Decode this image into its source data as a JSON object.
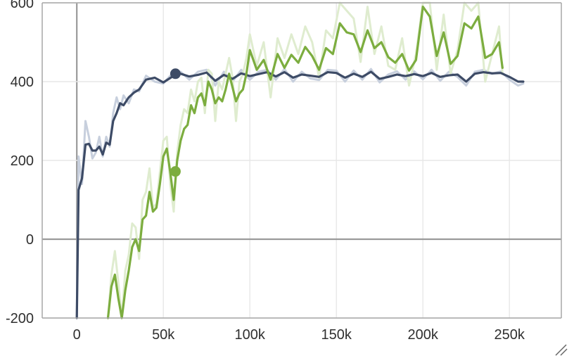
{
  "chart_data": {
    "type": "line",
    "title": "",
    "xlabel": "",
    "ylabel": "",
    "xlim": [
      -20000,
      280000
    ],
    "ylim": [
      -200,
      600
    ],
    "grid": true,
    "x_ticks": [
      {
        "value": 0,
        "label": "0"
      },
      {
        "value": 50000,
        "label": "50k"
      },
      {
        "value": 100000,
        "label": "100k"
      },
      {
        "value": 150000,
        "label": "150k"
      },
      {
        "value": 200000,
        "label": "200k"
      },
      {
        "value": 250000,
        "label": "250k"
      }
    ],
    "y_ticks": [
      {
        "value": -200,
        "label": "-200"
      },
      {
        "value": 0,
        "label": "0"
      },
      {
        "value": 200,
        "label": "200"
      },
      {
        "value": 400,
        "label": "400"
      },
      {
        "value": 600,
        "label": "600"
      }
    ],
    "colors": {
      "dark_series": "#3d4b66",
      "dark_series_raw": "#c7cfdd",
      "green_series": "#7cad3f",
      "green_series_raw": "#dfeccf",
      "axis": "#a7a7a7",
      "grid": "#e7e7e7",
      "zero_line": "#9a9a9a"
    },
    "series": [
      {
        "color_key": "dark_series",
        "raw_color_key": "dark_series_raw",
        "x": [
          0,
          1000,
          3000,
          5000,
          7000,
          9000,
          11000,
          13000,
          15000,
          17000,
          19000,
          21000,
          23000,
          25000,
          27000,
          30000,
          33000,
          36000,
          40000,
          45000,
          50000,
          55000,
          60000,
          65000,
          70000,
          75000,
          80000,
          85000,
          90000,
          95000,
          100000,
          105000,
          110000,
          115000,
          120000,
          125000,
          130000,
          135000,
          140000,
          145000,
          150000,
          155000,
          160000,
          165000,
          170000,
          175000,
          180000,
          185000,
          190000,
          195000,
          200000,
          205000,
          210000,
          215000,
          220000,
          225000,
          230000,
          235000,
          240000,
          245000,
          250000,
          255000,
          258000
        ],
        "values": [
          -200,
          125,
          155,
          240,
          242,
          225,
          225,
          235,
          215,
          245,
          240,
          300,
          320,
          345,
          340,
          360,
          372,
          380,
          405,
          410,
          398,
          412,
          420,
          413,
          417,
          423,
          402,
          417,
          407,
          421,
          414,
          419,
          424,
          413,
          424,
          410,
          418,
          415,
          412,
          424,
          422,
          410,
          420,
          412,
          425,
          407,
          412,
          418,
          414,
          419,
          414,
          422,
          412,
          416,
          418,
          400,
          420,
          424,
          421,
          422,
          412,
          400,
          400
        ],
        "raw_values": [
          -200,
          210,
          140,
          300,
          260,
          205,
          220,
          260,
          210,
          260,
          235,
          320,
          360,
          330,
          365,
          345,
          380,
          375,
          415,
          400,
          395,
          420,
          425,
          405,
          425,
          430,
          390,
          425,
          400,
          430,
          405,
          425,
          430,
          405,
          432,
          400,
          425,
          408,
          404,
          430,
          428,
          400,
          428,
          405,
          432,
          398,
          418,
          426,
          405,
          426,
          406,
          430,
          402,
          425,
          412,
          390,
          425,
          430,
          420,
          426,
          405,
          390,
          395
        ],
        "marker": {
          "x": 57000,
          "y": 420
        }
      },
      {
        "color_key": "green_series",
        "raw_color_key": "green_series_raw",
        "x": [
          18000,
          20000,
          22000,
          24000,
          26000,
          28000,
          30000,
          32000,
          34000,
          36000,
          38000,
          40000,
          42000,
          44000,
          46000,
          48000,
          50000,
          52000,
          54000,
          56000,
          58000,
          60000,
          62000,
          64000,
          66000,
          68000,
          70000,
          72000,
          74000,
          76000,
          78000,
          80000,
          82000,
          84000,
          86000,
          88000,
          90000,
          92000,
          94000,
          96000,
          98000,
          100000,
          104000,
          108000,
          112000,
          116000,
          120000,
          124000,
          128000,
          132000,
          136000,
          140000,
          144000,
          148000,
          152000,
          156000,
          160000,
          164000,
          168000,
          172000,
          176000,
          180000,
          184000,
          188000,
          192000,
          196000,
          200000,
          204000,
          208000,
          212000,
          216000,
          220000,
          224000,
          228000,
          232000,
          236000,
          240000,
          244000,
          246000
        ],
        "values": [
          -200,
          -120,
          -90,
          -150,
          -210,
          -130,
          -80,
          -20,
          0,
          -30,
          50,
          60,
          120,
          70,
          80,
          140,
          210,
          230,
          170,
          100,
          200,
          250,
          280,
          290,
          340,
          320,
          360,
          370,
          340,
          400,
          380,
          345,
          360,
          350,
          380,
          420,
          385,
          350,
          370,
          380,
          420,
          480,
          430,
          455,
          405,
          470,
          435,
          468,
          448,
          488,
          465,
          430,
          485,
          470,
          548,
          525,
          520,
          475,
          530,
          485,
          500,
          462,
          448,
          470,
          428,
          455,
          590,
          565,
          465,
          525,
          445,
          465,
          548,
          535,
          565,
          460,
          470,
          500,
          435
        ],
        "raw_values": [
          -200,
          -90,
          -30,
          -110,
          -200,
          -80,
          -40,
          40,
          30,
          -50,
          100,
          120,
          180,
          80,
          90,
          170,
          250,
          260,
          140,
          70,
          220,
          290,
          330,
          320,
          380,
          350,
          400,
          410,
          320,
          430,
          420,
          300,
          400,
          380,
          420,
          460,
          410,
          300,
          400,
          420,
          460,
          520,
          440,
          500,
          360,
          510,
          460,
          520,
          470,
          540,
          500,
          410,
          530,
          510,
          600,
          580,
          560,
          450,
          590,
          470,
          540,
          440,
          430,
          510,
          390,
          470,
          600,
          600,
          430,
          570,
          420,
          480,
          600,
          580,
          600,
          400,
          470,
          540,
          420
        ]
      }
    ]
  }
}
